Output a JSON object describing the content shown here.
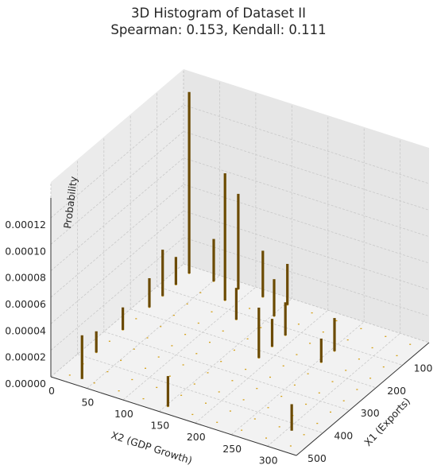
{
  "chart_data": {
    "type": "bar3d",
    "title": "3D Histogram of Dataset II",
    "subtitle": "Spearman: 0.153, Kendall: 0.111",
    "xlabel": "X1 (Exports)",
    "ylabel": "X2 (GDP Growth)",
    "zlabel": "Probability",
    "xlim": [
      0,
      500
    ],
    "ylim": [
      0,
      340
    ],
    "zlim": [
      0,
      0.00014
    ],
    "x_ticks": [
      "0",
      "100",
      "200",
      "300",
      "400",
      "500"
    ],
    "y_ticks": [
      "0",
      "50",
      "100",
      "150",
      "200",
      "250",
      "300"
    ],
    "z_ticks": [
      "0.00000",
      "0.00002",
      "0.00004",
      "0.00006",
      "0.00008",
      "0.00010",
      "0.00012"
    ],
    "grid": true,
    "bar_color": "#6b4a00",
    "marker_color": "#d4a017",
    "bins": {
      "x_edges": [
        0,
        50,
        100,
        150,
        200,
        250,
        300,
        350,
        400,
        450,
        500
      ],
      "y_edges": [
        0,
        34,
        68,
        102,
        136,
        170,
        204,
        238,
        272,
        306,
        340
      ]
    },
    "bars": [
      {
        "x": 25,
        "y": 17,
        "p": 0.000137
      },
      {
        "x": 25,
        "y": 85,
        "p": 7.2e-05
      },
      {
        "x": 25,
        "y": 51,
        "p": 3.2e-05
      },
      {
        "x": 25,
        "y": 119,
        "p": 3.5e-05
      },
      {
        "x": 25,
        "y": 153,
        "p": 3.1e-05
      },
      {
        "x": 75,
        "y": 17,
        "p": 2.1e-05
      },
      {
        "x": 75,
        "y": 85,
        "p": 9.6e-05
      },
      {
        "x": 75,
        "y": 153,
        "p": 2.8e-05
      },
      {
        "x": 125,
        "y": 17,
        "p": 3.5e-05
      },
      {
        "x": 125,
        "y": 119,
        "p": 2.4e-05
      },
      {
        "x": 125,
        "y": 187,
        "p": 2.5e-05
      },
      {
        "x": 125,
        "y": 255,
        "p": 2.5e-05
      },
      {
        "x": 175,
        "y": 17,
        "p": 2.2e-05
      },
      {
        "x": 175,
        "y": 255,
        "p": 1.8e-05
      },
      {
        "x": 175,
        "y": 187,
        "p": 2.1e-05
      },
      {
        "x": 225,
        "y": 187,
        "p": 3.8e-05
      },
      {
        "x": 275,
        "y": 17,
        "p": 1.7e-05
      },
      {
        "x": 375,
        "y": 17,
        "p": 1.6e-05
      },
      {
        "x": 425,
        "y": 306,
        "p": 2e-05
      },
      {
        "x": 475,
        "y": 34,
        "p": 3.3e-05
      },
      {
        "x": 475,
        "y": 153,
        "p": 2.3e-05
      }
    ]
  }
}
